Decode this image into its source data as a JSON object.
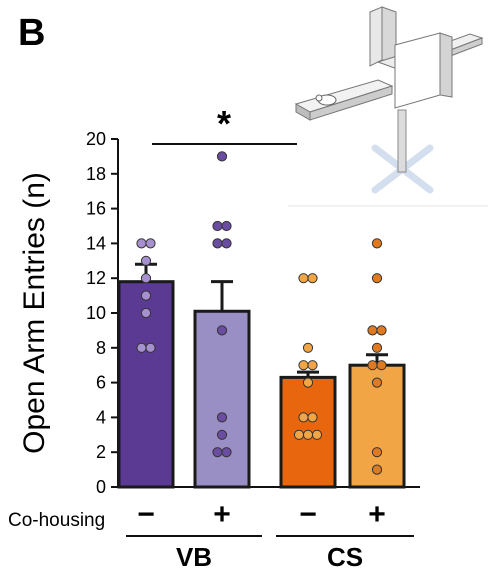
{
  "panel_label": "B",
  "colors": {
    "bar_vb_minus": "#5b3a93",
    "bar_vb_plus": "#9a8fc4",
    "bar_cs_minus": "#e8660d",
    "bar_cs_plus": "#f2a545",
    "dot_vb_minus": "#a690d0",
    "dot_vb_plus": "#6a4ca0",
    "dot_cs_minus": "#f2a545",
    "dot_cs_plus": "#e07a20",
    "outline": "#1a1a1a"
  },
  "chart_data": {
    "type": "bar",
    "ylabel": "Open Arm Entries (n)",
    "ylim": [
      0,
      20
    ],
    "yticks": [
      0,
      2,
      4,
      6,
      8,
      10,
      12,
      14,
      16,
      18,
      20
    ],
    "categories": [
      "VB −",
      "VB +",
      "CS −",
      "CS +"
    ],
    "series": [
      {
        "values": [
          11.8,
          10.1,
          6.3,
          7.0
        ]
      }
    ],
    "sem": [
      1.0,
      1.7,
      0.3,
      0.6
    ],
    "points": [
      [
        14,
        14,
        13,
        12,
        11,
        10,
        8,
        8
      ],
      [
        19,
        15,
        15,
        14,
        14,
        9,
        4,
        3,
        2,
        2
      ],
      [
        12,
        12,
        8,
        7,
        7,
        6,
        4,
        4,
        3,
        3,
        3
      ],
      [
        14,
        12,
        9,
        9,
        8,
        7,
        7,
        6,
        2,
        1
      ]
    ],
    "cohousing_label": "Co-housing",
    "cohousing_signs": [
      "−",
      "+",
      "−",
      "+"
    ],
    "groups": [
      "VB",
      "CS"
    ],
    "significance": {
      "label": "*",
      "between_groups": [
        "VB",
        "CS"
      ]
    }
  }
}
